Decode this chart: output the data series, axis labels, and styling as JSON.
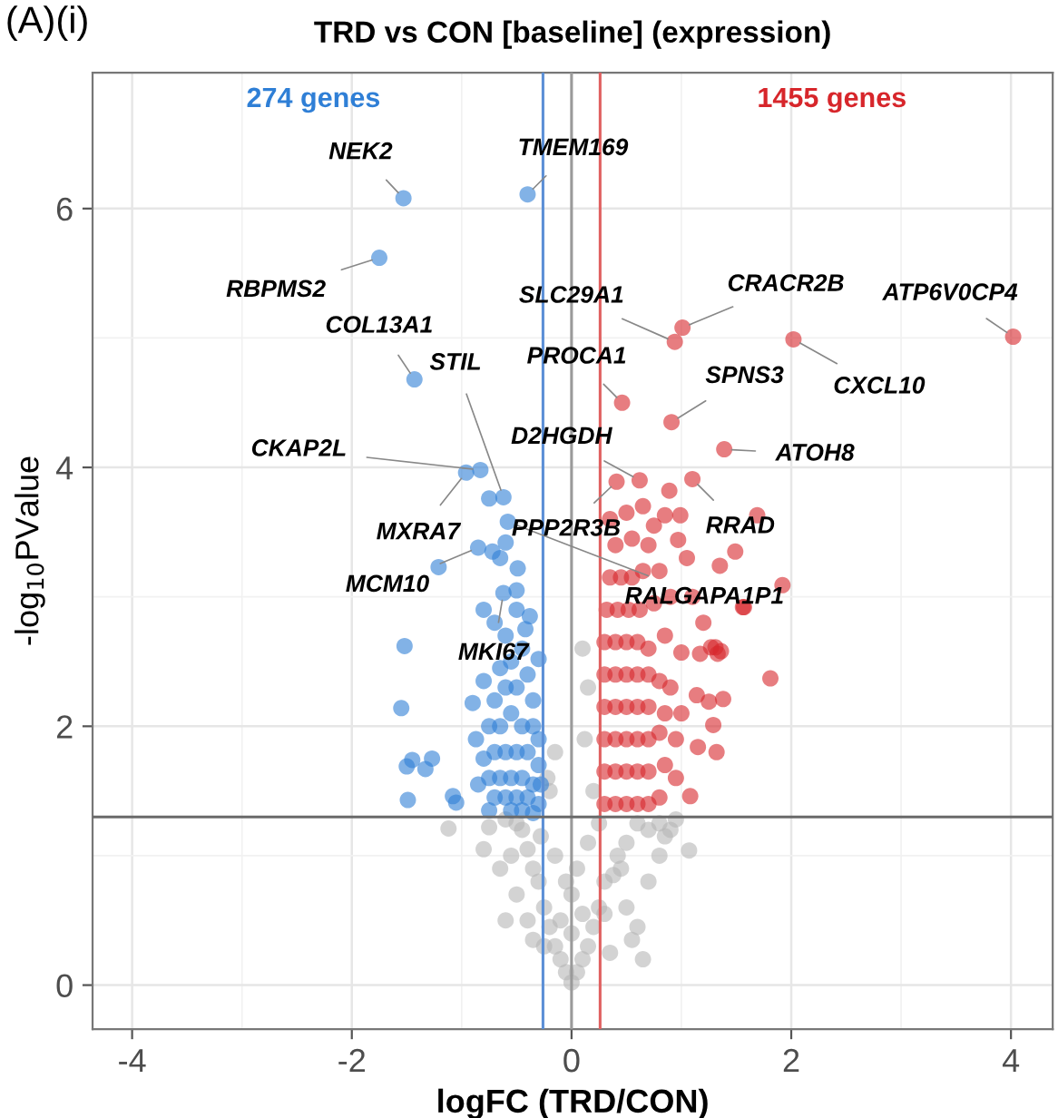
{
  "chart_data": {
    "type": "scatter",
    "title": "TRD vs CON [baseline] (expression)",
    "xlabel": "logFC (TRD/CON)",
    "ylabel": "-log$_{10}$PValue",
    "xlim": [
      -4.36,
      4.38
    ],
    "ylim": [
      -0.34,
      7.05
    ],
    "xticks": [
      -4,
      -2,
      0,
      2,
      4
    ],
    "yticks": [
      0,
      2,
      4,
      6
    ],
    "grid": true,
    "marker": "circle",
    "legend": false,
    "series": [
      {
        "color": "#b5b5b5",
        "x": [
          0,
          -0.05,
          0.05,
          -0.1,
          0.1,
          -0.15,
          0.15,
          -0.2,
          0.2,
          -0.25,
          0.25,
          0.3,
          -0.3,
          0.3,
          -0.35,
          0.38,
          0.45,
          -0.4,
          0.42,
          -0.45,
          0.5,
          -0.5,
          0.6,
          -0.6,
          0.7,
          0.85,
          0.8,
          0.6,
          0.65,
          0.55,
          -0.35,
          -0.4,
          -0.5,
          -0.55,
          0.5,
          0.35,
          -0.25,
          0.1,
          -0.1,
          0.05,
          -0.05,
          0.15,
          -0.15,
          0.2,
          -0.2,
          0.12,
          -0.15,
          0.15,
          0.1,
          -0.22,
          -1.12,
          1.07,
          0.8,
          0.9,
          -0.75,
          -0.8,
          -0.65,
          0.7,
          -0.6,
          0,
          0,
          0.25,
          -0.28,
          0.95
        ],
        "values": [
          0.02,
          0.1,
          0.1,
          0.2,
          0.2,
          0.3,
          0.3,
          0.45,
          0.45,
          0.6,
          0.6,
          0.55,
          0.8,
          0.8,
          0.9,
          0.85,
          0.9,
          1.05,
          1.0,
          1.2,
          1.1,
          1.25,
          1.25,
          1.28,
          1.2,
          1.15,
          1.25,
          0.45,
          0.2,
          0.35,
          0.35,
          0.5,
          0.7,
          1.0,
          0.6,
          0.25,
          0.3,
          0.55,
          0.5,
          0.9,
          0.8,
          1.1,
          1.0,
          1.5,
          1.5,
          1.9,
          1.8,
          2.3,
          2.6,
          1.6,
          1.21,
          1.04,
          1.0,
          1.2,
          1.22,
          1.05,
          0.9,
          0.8,
          0.5,
          0.4,
          0.7,
          1.25,
          1.15,
          1.28
        ]
      },
      {
        "color": "#2f7fd6",
        "x": [
          -1.53,
          -0.4,
          -1.75,
          -1.43,
          -0.83,
          -0.96,
          -0.62,
          -0.58,
          -0.85,
          -0.62,
          -1.21,
          -0.75,
          -0.6,
          -0.72,
          -0.65,
          -0.49,
          -0.8,
          -1.52,
          -1.55,
          -1.5,
          -1.45,
          -1.33,
          -1.27,
          -1.49,
          -1.08,
          -1.05,
          -0.9,
          -0.87,
          -0.3,
          -0.7,
          -0.6,
          -0.5,
          -0.55,
          -0.45,
          -0.65,
          -0.7,
          -0.6,
          -0.5,
          -0.4,
          -0.35,
          -0.75,
          -0.65,
          -0.55,
          -0.45,
          -0.35,
          -0.3,
          -0.7,
          -0.6,
          -0.5,
          -0.4,
          -0.3,
          -0.75,
          -0.65,
          -0.55,
          -0.45,
          -0.35,
          -0.7,
          -0.6,
          -0.5,
          -0.4,
          -0.3,
          -0.75,
          -0.55,
          -0.45,
          -0.35,
          -0.8,
          -0.85,
          -0.8,
          -0.42,
          -0.5,
          -0.38,
          -0.28
        ],
        "values": [
          6.08,
          6.11,
          5.62,
          4.68,
          3.98,
          3.96,
          3.77,
          3.58,
          3.38,
          3.03,
          3.23,
          3.76,
          3.42,
          3.35,
          3.3,
          3.22,
          2.9,
          2.62,
          2.14,
          1.69,
          1.74,
          1.67,
          1.75,
          1.43,
          1.46,
          1.41,
          2.18,
          1.9,
          2.52,
          2.8,
          2.7,
          2.9,
          2.5,
          2.6,
          2.45,
          2.2,
          2.3,
          2.3,
          2.4,
          2.2,
          2.0,
          2.0,
          2.1,
          2.0,
          2.0,
          1.9,
          1.8,
          1.8,
          1.8,
          1.8,
          1.7,
          1.6,
          1.6,
          1.6,
          1.6,
          1.55,
          1.45,
          1.45,
          1.45,
          1.45,
          1.4,
          1.35,
          1.35,
          1.35,
          1.33,
          1.75,
          1.55,
          2.35,
          2.75,
          3.05,
          2.85,
          1.55
        ]
      },
      {
        "color": "#d7262b",
        "x": [
          0.94,
          1.01,
          2.02,
          4.02,
          0.46,
          0.91,
          1.39,
          0.62,
          0.41,
          1.1,
          1.56,
          1.81,
          1.27,
          1.33,
          1.17,
          1.38,
          1.29,
          1.25,
          1.14,
          1.08,
          1.32,
          1.15,
          1.92,
          1.57,
          1.49,
          1.35,
          1.69,
          0.89,
          0.85,
          0.99,
          0.97,
          1.31,
          1.36,
          1.0,
          0.3,
          0.4,
          0.5,
          0.6,
          0.7,
          0.8,
          0.3,
          0.4,
          0.5,
          0.6,
          0.7,
          0.85,
          0.95,
          0.3,
          0.4,
          0.5,
          0.6,
          0.7,
          0.8,
          0.95,
          0.3,
          0.4,
          0.5,
          0.6,
          0.7,
          0.85,
          1.0,
          0.3,
          0.4,
          0.5,
          0.6,
          0.7,
          0.8,
          0.9,
          0.3,
          0.4,
          0.5,
          0.6,
          0.7,
          0.85,
          0.32,
          0.42,
          0.52,
          0.62,
          0.75,
          0.9,
          0.35,
          0.45,
          0.55,
          0.65,
          0.8,
          0.4,
          0.55,
          0.7,
          0.5,
          0.65,
          0.35,
          0.75,
          1.05,
          1.1,
          1.2
        ],
        "values": [
          4.97,
          5.08,
          4.99,
          5.01,
          4.5,
          4.35,
          4.14,
          3.9,
          3.89,
          3.91,
          2.92,
          2.37,
          2.61,
          2.56,
          2.56,
          2.21,
          2.01,
          2.19,
          2.24,
          1.46,
          1.8,
          1.84,
          3.09,
          2.92,
          3.35,
          3.24,
          3.63,
          3.82,
          3.63,
          3.63,
          3.44,
          2.61,
          2.58,
          2.57,
          1.4,
          1.4,
          1.4,
          1.4,
          1.4,
          1.45,
          1.65,
          1.65,
          1.65,
          1.65,
          1.65,
          1.7,
          1.6,
          1.9,
          1.9,
          1.9,
          1.9,
          1.9,
          1.95,
          1.9,
          2.15,
          2.15,
          2.15,
          2.15,
          2.15,
          2.1,
          2.1,
          2.4,
          2.4,
          2.4,
          2.4,
          2.4,
          2.35,
          2.3,
          2.65,
          2.65,
          2.65,
          2.65,
          2.6,
          2.7,
          2.9,
          2.9,
          2.9,
          2.9,
          2.95,
          3.0,
          3.15,
          3.15,
          3.15,
          3.2,
          3.2,
          3.4,
          3.45,
          3.4,
          3.65,
          3.7,
          3.6,
          3.55,
          3.3,
          3.0,
          2.8
        ]
      }
    ],
    "ref_lines": [
      {
        "axis": "x",
        "value": -0.26,
        "color": "#5b8fd6"
      },
      {
        "axis": "x",
        "value": 0,
        "color": "#9a9a9a"
      },
      {
        "axis": "x",
        "value": 0.26,
        "color": "#e06060"
      },
      {
        "axis": "y",
        "value": 1.3,
        "color": "#6a6a6a"
      }
    ],
    "annotations": [
      "(A)(i)",
      "274 genes",
      "1455 genes",
      {
        "text": "NEK2",
        "x": -1.53,
        "y": 6.08
      },
      {
        "text": "TMEM169",
        "x": -0.4,
        "y": 6.11
      },
      {
        "text": "RBPMS2",
        "x": -1.75,
        "y": 5.62
      },
      {
        "text": "COL13A1",
        "x": -1.43,
        "y": 4.68
      },
      {
        "text": "CKAP2L",
        "x": -0.83,
        "y": 3.98
      },
      {
        "text": "MXRA7",
        "x": -0.96,
        "y": 3.96
      },
      {
        "text": "STIL",
        "x": -0.62,
        "y": 3.77
      },
      {
        "text": "RALGAPA1P1",
        "x": -0.58,
        "y": 3.58
      },
      {
        "text": "MCM10",
        "x": -0.85,
        "y": 3.38
      },
      {
        "text": "MKI67",
        "x": -0.62,
        "y": 3.03
      },
      {
        "text": "SLC29A1",
        "x": 0.94,
        "y": 4.97
      },
      {
        "text": "CRACR2B",
        "x": 1.01,
        "y": 5.08
      },
      {
        "text": "CXCL10",
        "x": 2.02,
        "y": 4.99
      },
      {
        "text": "ATP6V0CP4",
        "x": 4.02,
        "y": 5.01
      },
      {
        "text": "PROCA1",
        "x": 0.46,
        "y": 4.5
      },
      {
        "text": "SPNS3",
        "x": 0.91,
        "y": 4.35
      },
      {
        "text": "ATOH8",
        "x": 1.39,
        "y": 4.14
      },
      {
        "text": "D2HGDH",
        "x": 0.62,
        "y": 3.9
      },
      {
        "text": "PPP2R3B",
        "x": 0.41,
        "y": 3.89
      },
      {
        "text": "RRAD",
        "x": 1.1,
        "y": 3.91
      }
    ]
  }
}
